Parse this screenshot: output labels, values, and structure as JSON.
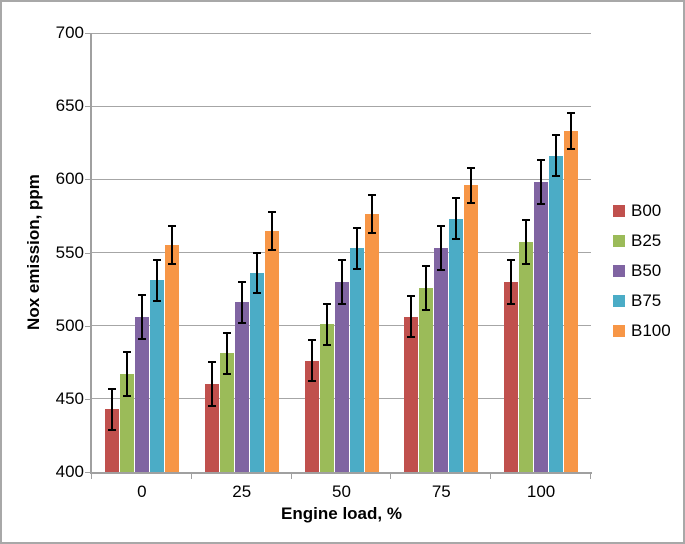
{
  "figure": {
    "y_axis_title": "Nox emission, ppm",
    "x_axis_title": "Engine load, %"
  },
  "chart_data": {
    "type": "bar",
    "title": "",
    "xlabel": "Engine load, %",
    "ylabel": "Nox emission, ppm",
    "ylim": [
      400,
      700
    ],
    "ytick_step": 50,
    "grid": true,
    "legend_position": "right",
    "categories": [
      "0",
      "25",
      "50",
      "75",
      "100"
    ],
    "series": [
      {
        "name": "B00",
        "color": "#C0504D",
        "values": [
          443,
          460,
          476,
          506,
          530
        ],
        "error": [
          14,
          15,
          14,
          14,
          15
        ]
      },
      {
        "name": "B25",
        "color": "#9BBB59",
        "values": [
          467,
          481,
          501,
          526,
          557
        ],
        "error": [
          15,
          14,
          14,
          15,
          15
        ]
      },
      {
        "name": "B50",
        "color": "#8064A2",
        "values": [
          506,
          516,
          530,
          553,
          598
        ],
        "error": [
          15,
          14,
          15,
          15,
          15
        ]
      },
      {
        "name": "B75",
        "color": "#4BACC6",
        "values": [
          531,
          536,
          553,
          573,
          616
        ],
        "error": [
          14,
          14,
          14,
          14,
          14
        ]
      },
      {
        "name": "B100",
        "color": "#F79646",
        "values": [
          555,
          565,
          576,
          596,
          633
        ],
        "error": [
          13,
          13,
          13,
          12,
          12
        ]
      }
    ],
    "error_bar_color": "#000000",
    "gridline_color": "#a6a6a6",
    "axis_color": "#a0a0a0"
  }
}
